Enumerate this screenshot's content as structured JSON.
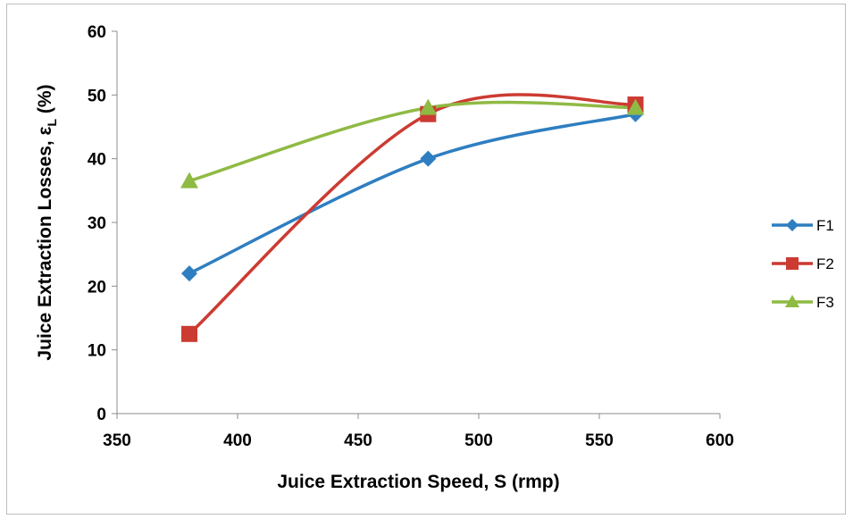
{
  "chart_data": {
    "type": "line",
    "title": "",
    "xlabel": "Juice Extraction Speed, S (rmp)",
    "ylabel_main": "Juice Extraction Losses, ε",
    "ylabel_sub": "L",
    "ylabel_unit": " (%)",
    "xlim": [
      350,
      600
    ],
    "ylim": [
      0,
      60
    ],
    "xticks": [
      "350",
      "400",
      "450",
      "500",
      "550",
      "600"
    ],
    "yticks": [
      "0",
      "10",
      "20",
      "30",
      "40",
      "50",
      "60"
    ],
    "grid": false,
    "legend_position": "right",
    "series": [
      {
        "name": "F1",
        "color": "#2e7ec1",
        "marker": "diamond",
        "x": [
          380,
          479,
          565
        ],
        "y": [
          22,
          40,
          47
        ]
      },
      {
        "name": "F2",
        "color": "#cc3b32",
        "marker": "square",
        "x": [
          380,
          479,
          565
        ],
        "y": [
          12.5,
          47,
          48.5
        ]
      },
      {
        "name": "F3",
        "color": "#8fba44",
        "marker": "triangle",
        "x": [
          380,
          479,
          565
        ],
        "y": [
          36.5,
          48,
          48
        ]
      }
    ]
  }
}
